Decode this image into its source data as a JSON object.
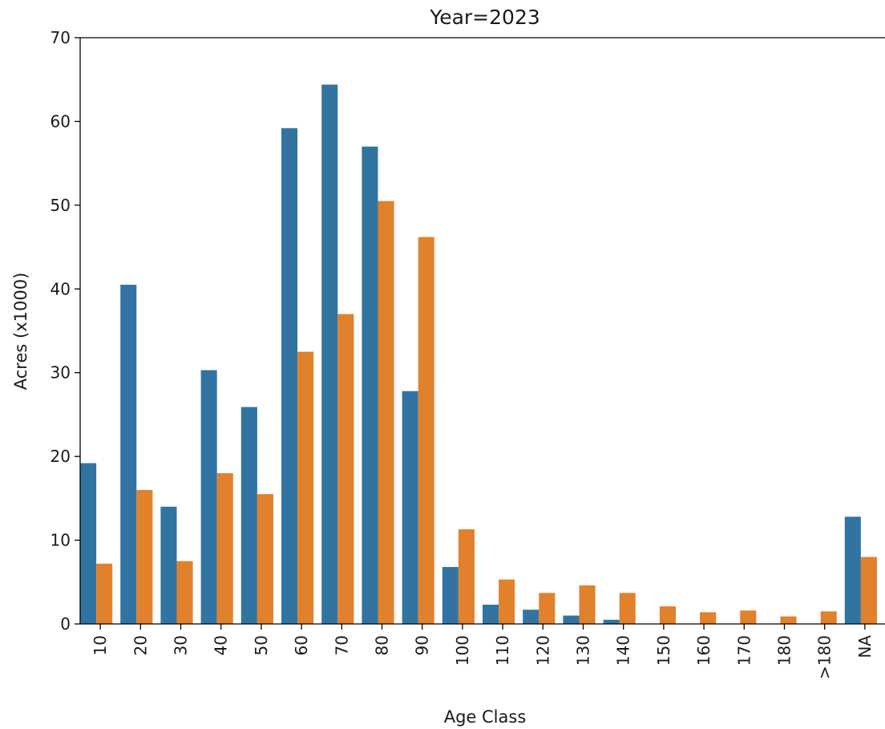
{
  "chart_data": {
    "type": "bar",
    "title": "Year=2023",
    "xlabel": "Age Class",
    "ylabel": "Acres (x1000)",
    "ylim": [
      0,
      70
    ],
    "yticks": [
      0,
      10,
      20,
      30,
      40,
      50,
      60,
      70
    ],
    "categories": [
      "10",
      "20",
      "30",
      "40",
      "50",
      "60",
      "70",
      "80",
      "90",
      "100",
      "110",
      "120",
      "130",
      "140",
      "150",
      "160",
      "170",
      "180",
      ">180",
      "NA"
    ],
    "series": [
      {
        "color": "#3274a1",
        "values": [
          19.2,
          40.5,
          14.0,
          30.3,
          25.9,
          59.2,
          64.4,
          57.0,
          27.8,
          6.8,
          2.3,
          1.7,
          1.0,
          0.5,
          0,
          0,
          0,
          0,
          0,
          12.8
        ]
      },
      {
        "color": "#e1812c",
        "values": [
          7.2,
          16.0,
          7.5,
          18.0,
          15.5,
          32.5,
          37.0,
          50.5,
          46.2,
          11.3,
          5.3,
          3.7,
          4.6,
          3.7,
          2.1,
          1.4,
          1.6,
          0.9,
          1.5,
          8.0
        ]
      }
    ],
    "grid": false,
    "legend": "none"
  }
}
